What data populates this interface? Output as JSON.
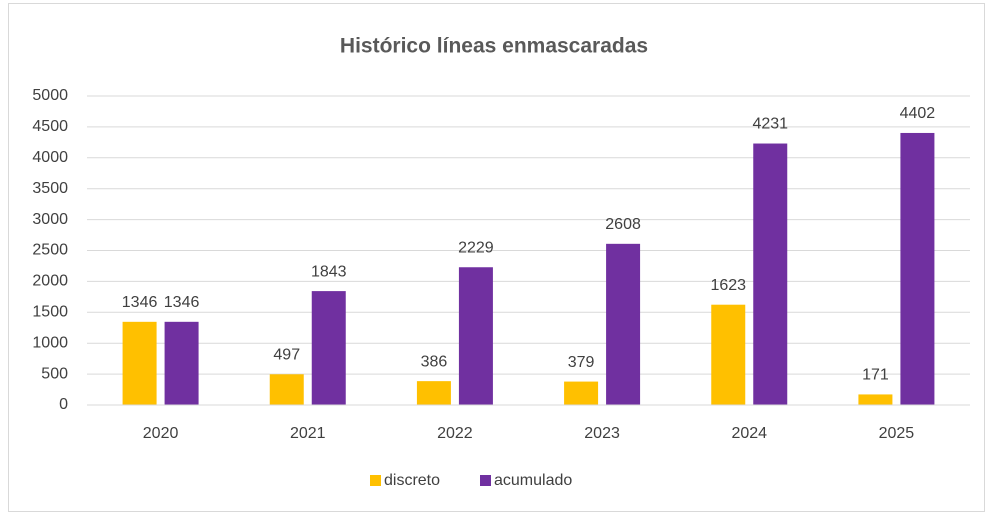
{
  "chart_data": {
    "type": "bar",
    "title": "Histórico líneas enmascaradas",
    "categories": [
      "2020",
      "2021",
      "2022",
      "2023",
      "2024",
      "2025"
    ],
    "series": [
      {
        "name": "discreto",
        "color": "#FFC000",
        "values": [
          1346,
          497,
          386,
          379,
          1623,
          171
        ]
      },
      {
        "name": "acumulado",
        "color": "#7030A0",
        "values": [
          1346,
          1843,
          2229,
          2608,
          4231,
          4402
        ]
      }
    ],
    "ylim": [
      0,
      5000
    ],
    "yticks": [
      0,
      500,
      1000,
      1500,
      2000,
      2500,
      3000,
      3500,
      4000,
      4500,
      5000
    ],
    "grid": true,
    "legend": "bottom"
  }
}
